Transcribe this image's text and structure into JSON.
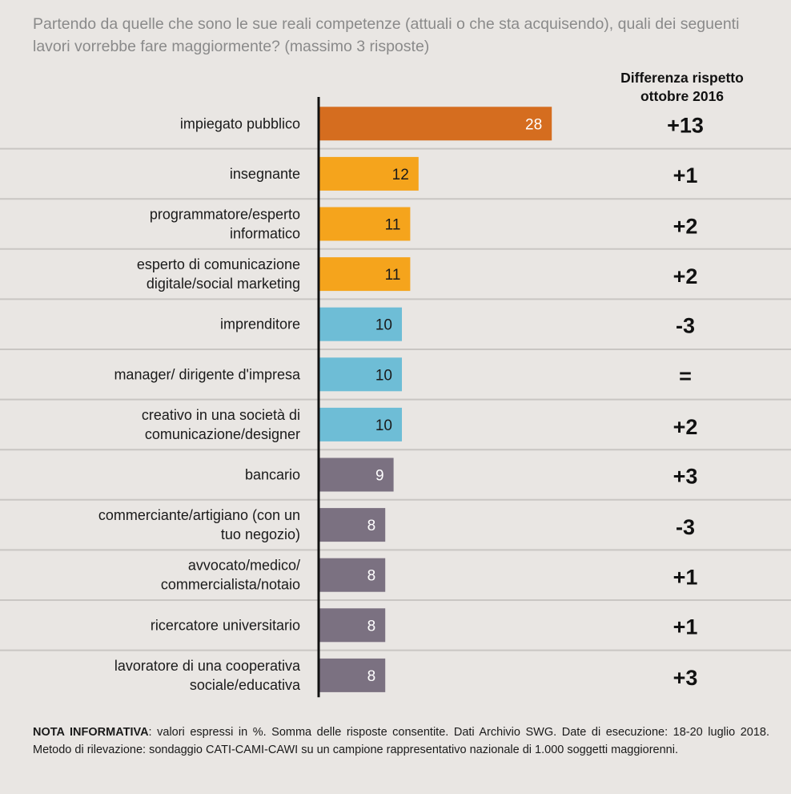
{
  "title": "Partendo da quelle che sono le sue reali competenze (attuali o che sta acquisendo), quali dei seguenti lavori vorrebbe fare maggiormente? (massimo 3 risposte)",
  "diff_header": "Differenza rispetto ottobre 2016",
  "note": {
    "label": "NOTA INFORMATIVA",
    "text": ": valori espressi in %. Somma delle risposte consentite. Dati Archivio SWG. Date di esecuzione: 18-20 luglio 2018. Metodo di rilevazione: sondaggio CATI-CAMI-CAWI su un campione rappresentativo nazionale di 1.000 soggetti maggiorenni."
  },
  "colors": {
    "orange_dark": "#d56d1f",
    "orange": "#f5a41c",
    "blue": "#6ebdd6",
    "gray": "#7b7181",
    "separator": "#c9c6c3",
    "axis": "#111111",
    "label": "#1a1a1a",
    "value_white": "#ffffff",
    "value_dark": "#1a1a1a"
  },
  "chart_data": {
    "type": "bar",
    "orientation": "horizontal",
    "categories": [
      "impiegato pubblico",
      "insegnante",
      "programmatore/esperto informatico",
      "esperto di comunicazione digitale/social marketing",
      "imprenditore",
      "manager/ dirigente d'impresa",
      "creativo in una società di comunicazione/designer",
      "bancario",
      "commerciante/artigiano (con un tuo negozio)",
      "avvocato/medico/ commercialista/notaio",
      "ricercatore universitario",
      "lavoratore di una cooperativa sociale/educativa"
    ],
    "category_lines": [
      [
        "impiegato pubblico"
      ],
      [
        "insegnante"
      ],
      [
        "programmatore/esperto",
        "informatico"
      ],
      [
        "esperto di comunicazione",
        "digitale/social marketing"
      ],
      [
        "imprenditore"
      ],
      [
        "manager/ dirigente d'impresa"
      ],
      [
        "creativo in una società di",
        "comunicazione/designer"
      ],
      [
        "bancario"
      ],
      [
        "commerciante/artigiano (con un",
        "tuo negozio)"
      ],
      [
        "avvocato/medico/",
        "commercialista/notaio"
      ],
      [
        "ricercatore universitario"
      ],
      [
        "lavoratore di una cooperativa",
        "sociale/educativa"
      ]
    ],
    "values": [
      28,
      12,
      11,
      11,
      10,
      10,
      10,
      9,
      8,
      8,
      8,
      8
    ],
    "bar_color_keys": [
      "orange_dark",
      "orange",
      "orange",
      "orange",
      "blue",
      "blue",
      "blue",
      "gray",
      "gray",
      "gray",
      "gray",
      "gray"
    ],
    "value_color_keys": [
      "value_white",
      "value_dark",
      "value_dark",
      "value_dark",
      "value_dark",
      "value_dark",
      "value_dark",
      "value_white",
      "value_white",
      "value_white",
      "value_white",
      "value_white"
    ],
    "differences": [
      "+13",
      "+1",
      "+2",
      "+2",
      "-3",
      "=",
      "+2",
      "+3",
      "-3",
      "+1",
      "+1",
      "+3"
    ],
    "unit": "%"
  }
}
